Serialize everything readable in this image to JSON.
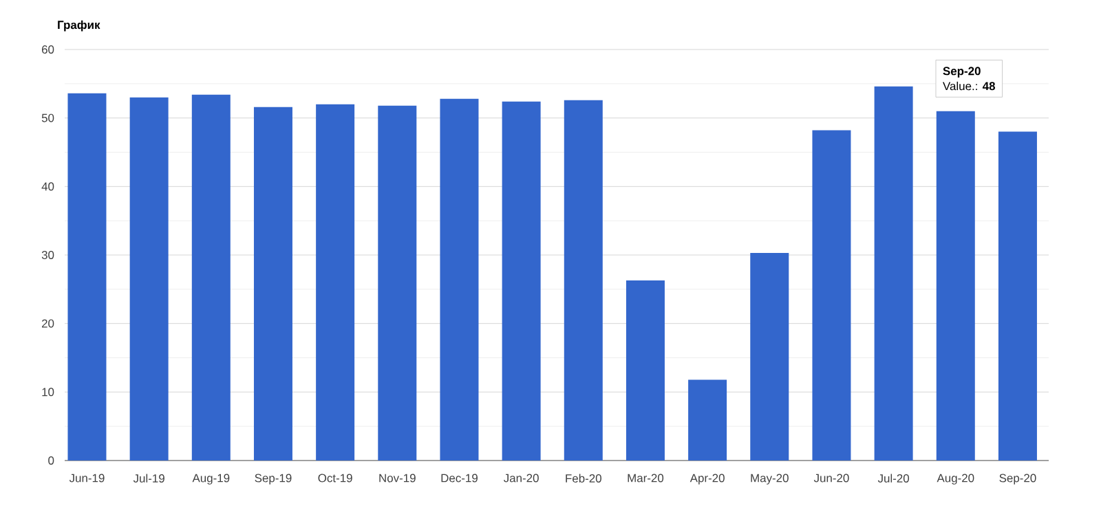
{
  "chart_data": {
    "type": "bar",
    "title": "График",
    "categories": [
      "Jun-19",
      "Jul-19",
      "Aug-19",
      "Sep-19",
      "Oct-19",
      "Nov-19",
      "Dec-19",
      "Jan-20",
      "Feb-20",
      "Mar-20",
      "Apr-20",
      "May-20",
      "Jun-20",
      "Jul-20",
      "Aug-20",
      "Sep-20"
    ],
    "values": [
      53.6,
      53.0,
      53.4,
      51.6,
      52.0,
      51.8,
      52.8,
      52.4,
      52.6,
      26.3,
      11.8,
      30.3,
      48.2,
      54.6,
      51,
      48
    ],
    "color": "#3366cc",
    "ylim": [
      0,
      60
    ],
    "yticks": [
      0,
      10,
      20,
      30,
      40,
      50,
      60
    ],
    "grid": "y",
    "annotations": [
      "Sep-20",
      "Value.: **48**"
    ]
  }
}
